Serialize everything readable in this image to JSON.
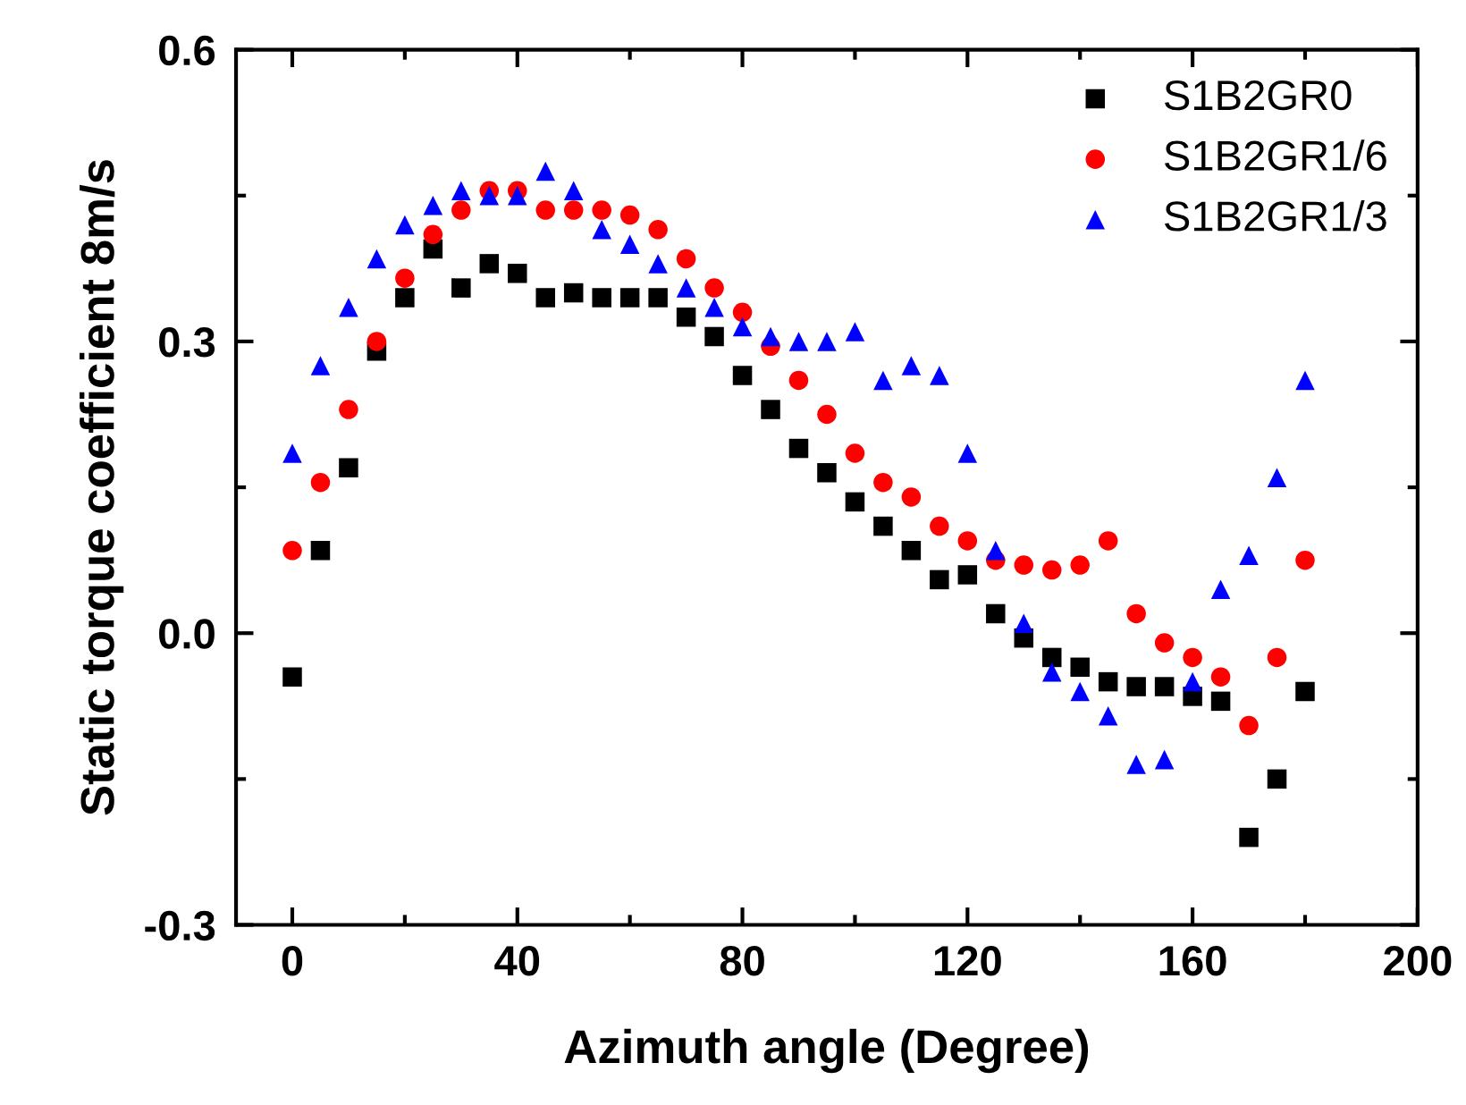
{
  "chart_data": {
    "type": "scatter",
    "xlabel": "Azimuth angle (Degree)",
    "ylabel": "Static torque coefficient 8m/s",
    "x": [
      0,
      5,
      10,
      15,
      20,
      25,
      30,
      35,
      40,
      45,
      50,
      55,
      60,
      65,
      70,
      75,
      80,
      85,
      90,
      95,
      100,
      105,
      110,
      115,
      120,
      125,
      130,
      135,
      140,
      145,
      150,
      155,
      160,
      165,
      170,
      175,
      180
    ],
    "series": [
      {
        "name": "S1B2GR0",
        "color": "#000000",
        "marker": "square",
        "values": [
          -0.045,
          0.085,
          0.17,
          0.29,
          0.345,
          0.395,
          0.355,
          0.38,
          0.37,
          0.345,
          0.35,
          0.345,
          0.345,
          0.345,
          0.325,
          0.305,
          0.265,
          0.23,
          0.19,
          0.165,
          0.135,
          0.11,
          0.085,
          0.055,
          0.06,
          0.02,
          -0.005,
          -0.025,
          -0.035,
          -0.05,
          -0.055,
          -0.055,
          -0.065,
          -0.07,
          -0.21,
          -0.15,
          -0.06
        ]
      },
      {
        "name": "S1B2GR1/6",
        "color": "#ff0000",
        "marker": "circle",
        "values": [
          0.085,
          0.155,
          0.23,
          0.3,
          0.365,
          0.41,
          0.435,
          0.455,
          0.455,
          0.435,
          0.435,
          0.435,
          0.43,
          0.415,
          0.385,
          0.355,
          0.33,
          0.295,
          0.26,
          0.225,
          0.185,
          0.155,
          0.14,
          0.11,
          0.095,
          0.075,
          0.07,
          0.065,
          0.07,
          0.095,
          0.02,
          -0.01,
          -0.025,
          -0.045,
          -0.095,
          -0.025,
          0.075
        ]
      },
      {
        "name": "S1B2GR1/3",
        "color": "#0000ff",
        "marker": "triangle",
        "values": [
          0.185,
          0.275,
          0.335,
          0.385,
          0.42,
          0.44,
          0.455,
          0.45,
          0.45,
          0.475,
          0.455,
          0.415,
          0.4,
          0.38,
          0.355,
          0.335,
          0.315,
          0.305,
          0.3,
          0.3,
          0.31,
          0.26,
          0.275,
          0.265,
          0.185,
          0.085,
          0.01,
          -0.04,
          -0.06,
          -0.085,
          -0.135,
          -0.13,
          -0.05,
          0.045,
          0.08,
          0.16,
          0.26
        ]
      }
    ],
    "xlim": [
      -10,
      200
    ],
    "xticks": [
      0,
      40,
      80,
      120,
      160,
      200
    ],
    "ylim": [
      -0.3,
      0.6
    ],
    "yticks": [
      {
        "value": -0.3,
        "label": "-0.3"
      },
      {
        "value": 0,
        "label": "0.0"
      },
      0.3,
      0.6
    ],
    "grid": false,
    "legend": "top right"
  }
}
